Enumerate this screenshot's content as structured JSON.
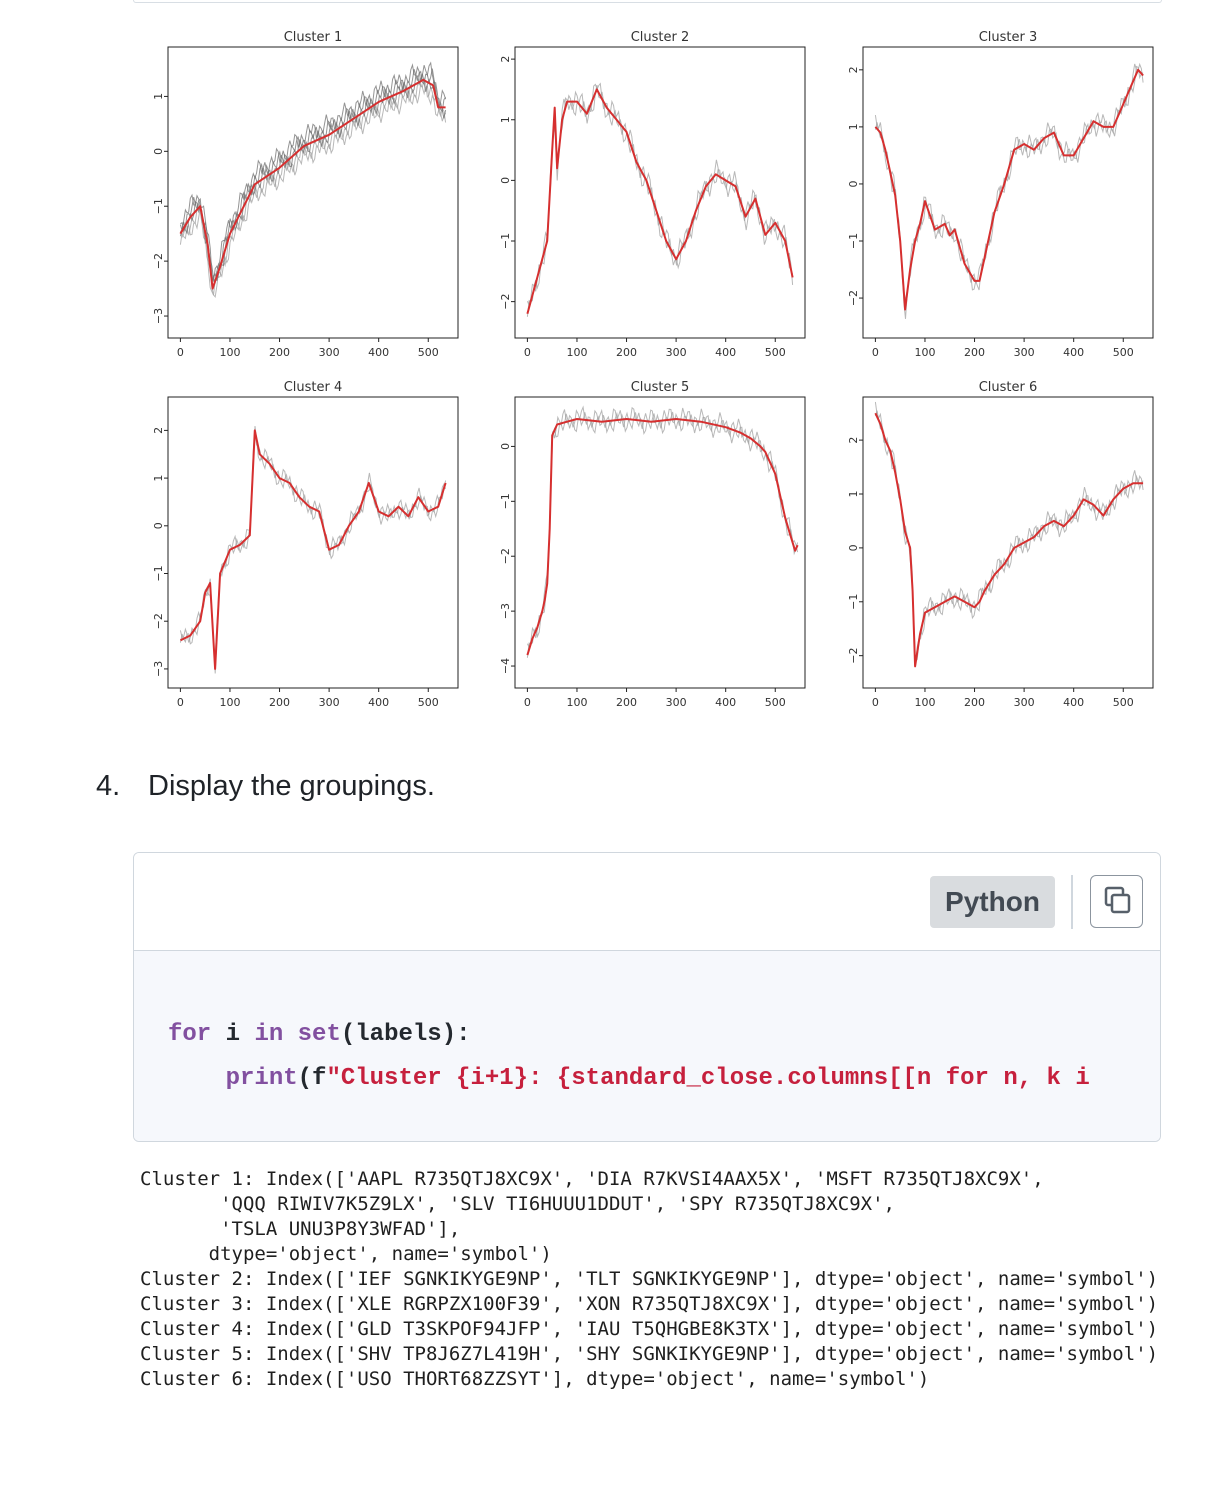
{
  "step": {
    "number": "4.",
    "text": "Display the groupings."
  },
  "code_block": {
    "language": "Python",
    "copy_icon": "copy-icon",
    "line1": {
      "kw_for": "for",
      "var": " i ",
      "kw_in": "in",
      "sp": " ",
      "kw_set": "set",
      "rest": "(labels):"
    },
    "line2": {
      "indent": "    ",
      "kw_print": "print",
      "open": "(f",
      "str": "\"Cluster {i+1}: {standard_close.columns[[n for n, k i"
    }
  },
  "output_lines": [
    "Cluster 1: Index(['AAPL R735QTJ8XC9X', 'DIA R7KVSI4AAX5X', 'MSFT R735QTJ8XC9X',",
    "       'QQQ RIWIV7K5Z9LX', 'SLV TI6HUUU1DDUT', 'SPY R735QTJ8XC9X',",
    "       'TSLA UNU3P8Y3WFAD'],",
    "      dtype='object', name='symbol')",
    "Cluster 2: Index(['IEF SGNKIKYGE9NP', 'TLT SGNKIKYGE9NP'], dtype='object', name='symbol')",
    "Cluster 3: Index(['XLE RGRPZX100F39', 'XON R735QTJ8XC9X'], dtype='object', name='symbol')",
    "Cluster 4: Index(['GLD T3SKPOF94JFP', 'IAU T5QHGBE8K3TX'], dtype='object', name='symbol')",
    "Cluster 5: Index(['SHV TP8J6Z7L419H', 'SHY SGNKIKYGE9NP'], dtype='object', name='symbol')",
    "Cluster 6: Index(['USO THORT68ZZSYT'], dtype='object', name='symbol')"
  ],
  "chart_data": [
    {
      "type": "line",
      "title": "Cluster 1",
      "xticks": [
        0,
        100,
        200,
        300,
        400,
        500
      ],
      "yticks": [
        1,
        0,
        -1,
        -2,
        -3
      ],
      "xlim": [
        -25,
        560
      ],
      "ylim": [
        -3.4,
        1.9
      ],
      "series_color": "#d62f2f",
      "member_color": "#a0a0a0",
      "x": [
        0,
        20,
        40,
        55,
        65,
        80,
        100,
        150,
        200,
        250,
        300,
        350,
        400,
        450,
        490,
        510,
        520,
        535
      ],
      "y": [
        -1.5,
        -1.2,
        -1.0,
        -1.7,
        -2.5,
        -2.1,
        -1.5,
        -0.6,
        -0.3,
        0.1,
        0.3,
        0.6,
        0.9,
        1.1,
        1.3,
        1.2,
        0.8,
        0.8
      ]
    },
    {
      "type": "line",
      "title": "Cluster 2",
      "xticks": [
        0,
        100,
        200,
        300,
        400,
        500
      ],
      "yticks": [
        2,
        1,
        0,
        -1,
        -2
      ],
      "xlim": [
        -25,
        560
      ],
      "ylim": [
        -2.6,
        2.2
      ],
      "series_color": "#d62f2f",
      "member_color": "#a0a0a0",
      "x": [
        0,
        20,
        40,
        50,
        55,
        60,
        70,
        80,
        100,
        120,
        140,
        160,
        180,
        200,
        220,
        240,
        260,
        280,
        300,
        320,
        340,
        360,
        380,
        400,
        420,
        440,
        460,
        480,
        500,
        520,
        535
      ],
      "y": [
        -2.2,
        -1.6,
        -1.0,
        0.5,
        1.2,
        0.2,
        1.0,
        1.3,
        1.3,
        1.1,
        1.5,
        1.2,
        1.0,
        0.8,
        0.3,
        0.0,
        -0.5,
        -1.0,
        -1.3,
        -1.0,
        -0.5,
        -0.1,
        0.1,
        0.0,
        -0.1,
        -0.6,
        -0.3,
        -0.9,
        -0.7,
        -1.0,
        -1.6
      ]
    },
    {
      "type": "line",
      "title": "Cluster 3",
      "xticks": [
        0,
        100,
        200,
        300,
        400,
        500
      ],
      "yticks": [
        2,
        1,
        0,
        -1,
        -2
      ],
      "xlim": [
        -25,
        560
      ],
      "ylim": [
        -2.7,
        2.4
      ],
      "series_color": "#d62f2f",
      "member_color": "#a0a0a0",
      "x": [
        0,
        10,
        20,
        30,
        40,
        50,
        60,
        70,
        80,
        90,
        100,
        120,
        140,
        150,
        160,
        180,
        200,
        210,
        220,
        240,
        260,
        280,
        300,
        320,
        340,
        360,
        380,
        400,
        420,
        440,
        460,
        480,
        500,
        510,
        530,
        540
      ],
      "y": [
        1.0,
        0.9,
        0.6,
        0.2,
        -0.2,
        -1.0,
        -2.2,
        -1.5,
        -1.0,
        -0.7,
        -0.3,
        -0.8,
        -0.7,
        -0.9,
        -0.8,
        -1.4,
        -1.7,
        -1.7,
        -1.3,
        -0.5,
        0.0,
        0.6,
        0.7,
        0.6,
        0.8,
        0.9,
        0.5,
        0.5,
        0.8,
        1.1,
        1.0,
        1.0,
        1.4,
        1.6,
        2.0,
        1.9
      ]
    },
    {
      "type": "line",
      "title": "Cluster 4",
      "xticks": [
        0,
        100,
        200,
        300,
        400,
        500
      ],
      "yticks": [
        2,
        1,
        0,
        -1,
        -2,
        -3
      ],
      "xlim": [
        -25,
        560
      ],
      "ylim": [
        -3.4,
        2.7
      ],
      "series_color": "#d62f2f",
      "member_color": "#a0a0a0",
      "x": [
        0,
        20,
        40,
        50,
        60,
        70,
        80,
        100,
        120,
        140,
        150,
        160,
        180,
        200,
        220,
        240,
        260,
        280,
        300,
        320,
        340,
        360,
        380,
        400,
        420,
        440,
        460,
        480,
        500,
        520,
        535
      ],
      "y": [
        -2.4,
        -2.3,
        -2.0,
        -1.4,
        -1.2,
        -3.0,
        -1.0,
        -0.5,
        -0.4,
        -0.2,
        2.0,
        1.5,
        1.3,
        1.0,
        0.9,
        0.6,
        0.4,
        0.3,
        -0.5,
        -0.4,
        0.0,
        0.3,
        0.9,
        0.3,
        0.2,
        0.4,
        0.2,
        0.6,
        0.3,
        0.4,
        0.9
      ]
    },
    {
      "type": "line",
      "title": "Cluster 5",
      "xticks": [
        0,
        100,
        200,
        300,
        400,
        500
      ],
      "yticks": [
        0,
        -1,
        -2,
        -3,
        -4
      ],
      "xlim": [
        -25,
        560
      ],
      "ylim": [
        -4.4,
        0.9
      ],
      "series_color": "#d62f2f",
      "member_color": "#a0a0a0",
      "x": [
        0,
        10,
        20,
        30,
        35,
        40,
        45,
        50,
        60,
        80,
        100,
        150,
        200,
        250,
        300,
        350,
        400,
        430,
        450,
        470,
        480,
        490,
        500,
        510,
        520,
        530,
        540,
        545
      ],
      "y": [
        -3.8,
        -3.5,
        -3.3,
        -3.0,
        -2.8,
        -2.5,
        -1.5,
        0.2,
        0.4,
        0.45,
        0.5,
        0.45,
        0.5,
        0.45,
        0.5,
        0.45,
        0.35,
        0.25,
        0.15,
        0.0,
        -0.1,
        -0.3,
        -0.5,
        -0.9,
        -1.3,
        -1.6,
        -1.9,
        -1.8
      ]
    },
    {
      "type": "line",
      "title": "Cluster 6",
      "xticks": [
        0,
        100,
        200,
        300,
        400,
        500
      ],
      "yticks": [
        2,
        1,
        0,
        -1,
        -2
      ],
      "xlim": [
        -25,
        560
      ],
      "ylim": [
        -2.6,
        2.8
      ],
      "series_color": "#d62f2f",
      "member_color": "#a0a0a0",
      "x": [
        0,
        10,
        20,
        30,
        40,
        50,
        60,
        70,
        75,
        80,
        90,
        100,
        120,
        140,
        160,
        180,
        200,
        210,
        220,
        240,
        260,
        280,
        300,
        320,
        340,
        360,
        380,
        400,
        420,
        440,
        460,
        480,
        500,
        520,
        540
      ],
      "y": [
        2.5,
        2.3,
        2.0,
        1.8,
        1.4,
        0.9,
        0.3,
        0.0,
        -0.8,
        -2.2,
        -1.6,
        -1.2,
        -1.1,
        -1.0,
        -0.9,
        -1.0,
        -1.1,
        -1.0,
        -0.8,
        -0.5,
        -0.3,
        0.0,
        0.1,
        0.2,
        0.4,
        0.5,
        0.4,
        0.6,
        0.9,
        0.8,
        0.6,
        0.9,
        1.1,
        1.2,
        1.2
      ]
    }
  ]
}
